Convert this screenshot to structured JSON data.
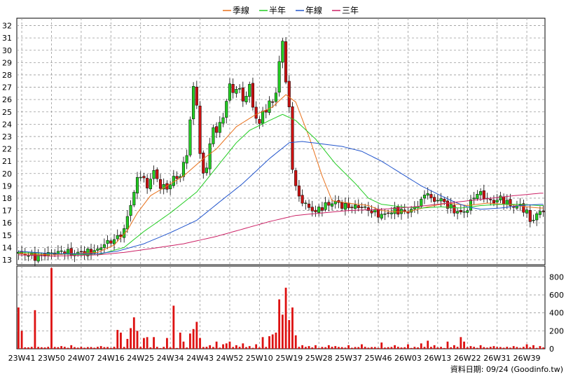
{
  "legend": [
    {
      "name": "季線",
      "color": "#e8701a"
    },
    {
      "name": "半年",
      "color": "#22cc22"
    },
    {
      "name": "年線",
      "color": "#2255cc"
    },
    {
      "name": "三年",
      "color": "#cc2266"
    }
  ],
  "footer": "資料日期: 09/24  (Goodinfo.tw)",
  "chart_data": {
    "type": "candlestick",
    "x_tick_labels": [
      "23W41",
      "23W50",
      "24W07",
      "24W16",
      "24W25",
      "24W34",
      "24W43",
      "24W52",
      "25W10",
      "25W19",
      "25W28",
      "25W37",
      "25W46",
      "26W03",
      "26W13",
      "26W22",
      "26W31",
      "26W39"
    ],
    "price_axis": {
      "ylim": [
        12.6,
        32.6
      ],
      "ticks": [
        13,
        14,
        15,
        16,
        17,
        18,
        19,
        20,
        21,
        22,
        23,
        24,
        25,
        26,
        27,
        28,
        29,
        30,
        31,
        32
      ]
    },
    "volume_axis": {
      "ylim": [
        0,
        920
      ],
      "ticks": [
        0,
        200,
        400,
        600,
        800
      ]
    },
    "up_color": "#22cc22",
    "down_color": "#cc1111",
    "volume_color": "#dd1111",
    "close_keypoints": [
      [
        0,
        13.5
      ],
      [
        3,
        13.4
      ],
      [
        5,
        13.2
      ],
      [
        7,
        13.4
      ],
      [
        9,
        13.5
      ],
      [
        12,
        13.6
      ],
      [
        14,
        13.7
      ],
      [
        16,
        13.5
      ],
      [
        19,
        13.6
      ],
      [
        21,
        13.6
      ],
      [
        24,
        13.8
      ],
      [
        26,
        14.3
      ],
      [
        28,
        14.5
      ],
      [
        30,
        14.8
      ],
      [
        32,
        15.4
      ],
      [
        33,
        16.5
      ],
      [
        34,
        17.5
      ],
      [
        35,
        18.5
      ],
      [
        36,
        19.5
      ],
      [
        37,
        20.0
      ],
      [
        38,
        19.4
      ],
      [
        39,
        18.9
      ],
      [
        40,
        19.6
      ],
      [
        41,
        20.2
      ],
      [
        42,
        19.5
      ],
      [
        43,
        19.0
      ],
      [
        45,
        18.8
      ],
      [
        47,
        19.6
      ],
      [
        49,
        19.8
      ],
      [
        50,
        20.8
      ],
      [
        51,
        21.5
      ],
      [
        52,
        24.5
      ],
      [
        53,
        26.8
      ],
      [
        54,
        25.8
      ],
      [
        55,
        21.5
      ],
      [
        56,
        20.0
      ],
      [
        57,
        20.5
      ],
      [
        58,
        22.5
      ],
      [
        59,
        23.5
      ],
      [
        60,
        23.6
      ],
      [
        61,
        24.0
      ],
      [
        62,
        24.5
      ],
      [
        63,
        26.0
      ],
      [
        64,
        27.2
      ],
      [
        65,
        26.5
      ],
      [
        66,
        27.0
      ],
      [
        67,
        26.8
      ],
      [
        68,
        25.8
      ],
      [
        69,
        26.5
      ],
      [
        70,
        27.0
      ],
      [
        71,
        25.5
      ],
      [
        72,
        24.5
      ],
      [
        73,
        24.0
      ],
      [
        74,
        25.0
      ],
      [
        75,
        25.2
      ],
      [
        76,
        25.6
      ],
      [
        77,
        26.0
      ],
      [
        78,
        26.5
      ],
      [
        79,
        29.0
      ],
      [
        80,
        30.8
      ],
      [
        81,
        27.5
      ],
      [
        82,
        25.2
      ],
      [
        83,
        20.5
      ],
      [
        84,
        19.0
      ],
      [
        85,
        18.0
      ],
      [
        86,
        17.8
      ],
      [
        88,
        17.2
      ],
      [
        90,
        16.9
      ],
      [
        92,
        17.3
      ],
      [
        94,
        17.5
      ],
      [
        96,
        17.7
      ],
      [
        98,
        17.4
      ],
      [
        100,
        17.3
      ],
      [
        104,
        17.3
      ],
      [
        108,
        16.8
      ],
      [
        110,
        16.6
      ],
      [
        114,
        17.0
      ],
      [
        118,
        16.9
      ],
      [
        120,
        17.2
      ],
      [
        122,
        17.8
      ],
      [
        124,
        18.6
      ],
      [
        125,
        17.8
      ],
      [
        128,
        17.9
      ],
      [
        130,
        17.4
      ],
      [
        132,
        17.0
      ],
      [
        134,
        16.8
      ],
      [
        136,
        17.1
      ],
      [
        138,
        18.2
      ],
      [
        140,
        18.4
      ],
      [
        142,
        17.9
      ],
      [
        144,
        17.7
      ],
      [
        146,
        18.0
      ],
      [
        148,
        17.6
      ],
      [
        150,
        17.3
      ],
      [
        152,
        17.4
      ],
      [
        154,
        16.8
      ],
      [
        155,
        16.2
      ],
      [
        156,
        16.3
      ],
      [
        157,
        16.6
      ],
      [
        158,
        17.0
      ]
    ],
    "volume_spikes": [
      [
        0,
        460
      ],
      [
        1,
        200
      ],
      [
        5,
        430
      ],
      [
        10,
        900
      ],
      [
        13,
        30
      ],
      [
        16,
        40
      ],
      [
        25,
        30
      ],
      [
        30,
        210
      ],
      [
        31,
        180
      ],
      [
        33,
        110
      ],
      [
        34,
        230
      ],
      [
        35,
        350
      ],
      [
        36,
        200
      ],
      [
        38,
        120
      ],
      [
        39,
        130
      ],
      [
        41,
        130
      ],
      [
        45,
        120
      ],
      [
        47,
        480
      ],
      [
        49,
        180
      ],
      [
        50,
        80
      ],
      [
        52,
        170
      ],
      [
        53,
        220
      ],
      [
        54,
        300
      ],
      [
        55,
        120
      ],
      [
        56,
        20
      ],
      [
        58,
        40
      ],
      [
        60,
        80
      ],
      [
        62,
        50
      ],
      [
        63,
        60
      ],
      [
        64,
        80
      ],
      [
        66,
        40
      ],
      [
        68,
        60
      ],
      [
        70,
        30
      ],
      [
        72,
        50
      ],
      [
        74,
        130
      ],
      [
        76,
        140
      ],
      [
        77,
        160
      ],
      [
        78,
        180
      ],
      [
        79,
        550
      ],
      [
        80,
        380
      ],
      [
        81,
        680
      ],
      [
        82,
        320
      ],
      [
        83,
        460
      ],
      [
        84,
        150
      ],
      [
        86,
        40
      ],
      [
        88,
        30
      ],
      [
        90,
        40
      ],
      [
        94,
        40
      ],
      [
        96,
        30
      ],
      [
        100,
        40
      ],
      [
        104,
        50
      ],
      [
        110,
        70
      ],
      [
        114,
        40
      ],
      [
        118,
        50
      ],
      [
        122,
        60
      ],
      [
        124,
        90
      ],
      [
        126,
        40
      ],
      [
        130,
        80
      ],
      [
        132,
        40
      ],
      [
        134,
        130
      ],
      [
        135,
        80
      ],
      [
        137,
        30
      ],
      [
        140,
        40
      ],
      [
        144,
        30
      ],
      [
        150,
        30
      ],
      [
        154,
        50
      ],
      [
        156,
        40
      ],
      [
        158,
        30
      ]
    ],
    "ma_series": [
      {
        "name": "季線",
        "color": "#e8701a",
        "points": [
          [
            0,
            13.5
          ],
          [
            10,
            13.4
          ],
          [
            24,
            13.6
          ],
          [
            29,
            14.2
          ],
          [
            33,
            15.4
          ],
          [
            36,
            16.8
          ],
          [
            40,
            18.2
          ],
          [
            45,
            19.0
          ],
          [
            50,
            19.8
          ],
          [
            53,
            20.5
          ],
          [
            56,
            21.2
          ],
          [
            60,
            22.0
          ],
          [
            66,
            23.8
          ],
          [
            72,
            24.8
          ],
          [
            77,
            25.4
          ],
          [
            81,
            26.4
          ],
          [
            84,
            25.8
          ],
          [
            88,
            23.0
          ],
          [
            92,
            19.8
          ],
          [
            95,
            17.8
          ],
          [
            100,
            17.6
          ],
          [
            106,
            17.4
          ],
          [
            110,
            17.0
          ],
          [
            114,
            16.9
          ],
          [
            118,
            16.9
          ],
          [
            124,
            17.3
          ],
          [
            130,
            17.6
          ],
          [
            136,
            17.4
          ],
          [
            142,
            17.6
          ],
          [
            148,
            17.5
          ],
          [
            154,
            17.3
          ],
          [
            158,
            17.2
          ]
        ]
      },
      {
        "name": "半年",
        "color": "#22cc22",
        "points": [
          [
            0,
            13.6
          ],
          [
            10,
            13.5
          ],
          [
            24,
            13.4
          ],
          [
            32,
            14.0
          ],
          [
            38,
            15.3
          ],
          [
            46,
            16.8
          ],
          [
            54,
            18.5
          ],
          [
            60,
            20.5
          ],
          [
            66,
            22.5
          ],
          [
            70,
            23.5
          ],
          [
            76,
            24.3
          ],
          [
            80,
            24.8
          ],
          [
            84,
            24.3
          ],
          [
            90,
            22.8
          ],
          [
            96,
            20.8
          ],
          [
            102,
            19.2
          ],
          [
            106,
            18.0
          ],
          [
            110,
            17.5
          ],
          [
            116,
            17.3
          ],
          [
            122,
            17.2
          ],
          [
            128,
            17.3
          ],
          [
            134,
            17.2
          ],
          [
            140,
            17.4
          ],
          [
            146,
            17.5
          ],
          [
            152,
            17.5
          ],
          [
            158,
            17.4
          ]
        ]
      },
      {
        "name": "年線",
        "color": "#2255cc",
        "points": [
          [
            0,
            13.7
          ],
          [
            10,
            13.5
          ],
          [
            24,
            13.5
          ],
          [
            30,
            13.7
          ],
          [
            38,
            14.3
          ],
          [
            46,
            15.2
          ],
          [
            54,
            16.2
          ],
          [
            60,
            17.5
          ],
          [
            68,
            19.2
          ],
          [
            76,
            21.2
          ],
          [
            82,
            22.5
          ],
          [
            86,
            22.6
          ],
          [
            92,
            22.4
          ],
          [
            98,
            22.2
          ],
          [
            104,
            21.8
          ],
          [
            110,
            21.0
          ],
          [
            116,
            20.0
          ],
          [
            122,
            19.0
          ],
          [
            128,
            18.2
          ],
          [
            132,
            17.7
          ],
          [
            136,
            17.3
          ],
          [
            140,
            17.1
          ],
          [
            146,
            17.2
          ],
          [
            152,
            17.4
          ],
          [
            158,
            17.5
          ]
        ]
      },
      {
        "name": "三年",
        "color": "#cc2266",
        "points": [
          [
            0,
            13.4
          ],
          [
            10,
            13.3
          ],
          [
            24,
            13.4
          ],
          [
            32,
            13.6
          ],
          [
            40,
            13.9
          ],
          [
            50,
            14.3
          ],
          [
            60,
            14.9
          ],
          [
            68,
            15.5
          ],
          [
            76,
            16.1
          ],
          [
            84,
            16.6
          ],
          [
            92,
            16.8
          ],
          [
            100,
            17.0
          ],
          [
            110,
            17.1
          ],
          [
            120,
            17.3
          ],
          [
            130,
            17.6
          ],
          [
            140,
            17.9
          ],
          [
            150,
            18.2
          ],
          [
            158,
            18.4
          ]
        ]
      }
    ]
  }
}
